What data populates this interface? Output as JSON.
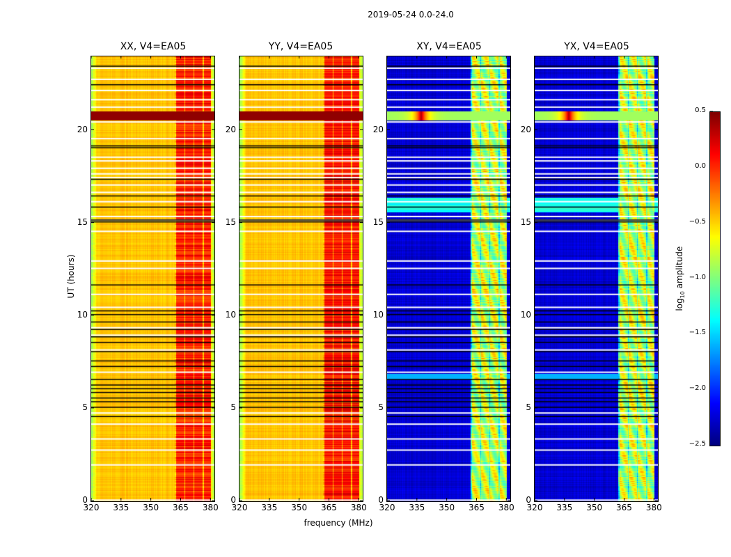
{
  "chart_data": {
    "type": "heatmap",
    "suptitle": "2019-05-24 0.0-24.0",
    "xlabel": "frequency (MHz)",
    "ylabel": "UT (hours)",
    "xlim": [
      320,
      382
    ],
    "ylim": [
      0,
      24
    ],
    "xticks": [
      320,
      335,
      350,
      365,
      380
    ],
    "xtick_labels": [
      "320",
      "335",
      "350",
      "365",
      "380"
    ],
    "yticks": [
      0,
      5,
      10,
      15,
      20
    ],
    "ytick_labels": [
      "0",
      "5",
      "10",
      "15",
      "20"
    ],
    "colormap": "jet",
    "colorbar": {
      "label": "log10 amplitude",
      "label_main": "log",
      "label_sub": "10",
      "label_rest": " amplitude",
      "range": [
        -2.5,
        0.5
      ],
      "ticks": [
        0.5,
        0.0,
        -0.5,
        -1.0,
        -1.5,
        -2.0,
        -2.5
      ],
      "tick_labels": [
        "0.5",
        "0.0",
        "−0.5",
        "−1.0",
        "−1.5",
        "−2.0",
        "−2.5"
      ]
    },
    "panels": [
      {
        "title": "XX, V4=EA05",
        "polarization": "XX",
        "baseline_level": -0.45,
        "band_level": 0.05,
        "kind": "parallel"
      },
      {
        "title": "YY, V4=EA05",
        "polarization": "YY",
        "baseline_level": -0.45,
        "band_level": 0.08,
        "kind": "parallel"
      },
      {
        "title": "XY, V4=EA05",
        "polarization": "XY",
        "baseline_level": -2.25,
        "band_level": -0.8,
        "kind": "cross"
      },
      {
        "title": "YX, V4=EA05",
        "polarization": "YX",
        "baseline_level": -2.25,
        "band_level": -0.8,
        "kind": "cross"
      }
    ],
    "strong_band_MHz": [
      362,
      380
    ],
    "flagged_hours_white": [
      23.4,
      22.8,
      22.2,
      21.7,
      21.3,
      20.5,
      19.6,
      18.6,
      18.4,
      18.0,
      17.7,
      17.5,
      17.1,
      16.7,
      16.2,
      15.4,
      15.2,
      14.6,
      13.0,
      12.6,
      11.2,
      10.5,
      9.4,
      9.0,
      8.2,
      7.0,
      4.8,
      4.2,
      3.4,
      2.8,
      2.0,
      0.1
    ],
    "flagged_hours_black": [
      23.5,
      22.5,
      19.2,
      19.1,
      17.4,
      16.5,
      15.9,
      15.2,
      15.1,
      11.7,
      10.3,
      10.1,
      9.7,
      9.3,
      8.9,
      8.6,
      8.1,
      7.6,
      7.3,
      6.6,
      6.3,
      6.1,
      5.9,
      5.6,
      5.4,
      5.1,
      4.6
    ],
    "rfi_event_hour": 20.8,
    "rfi_event_MHz": 337
  }
}
